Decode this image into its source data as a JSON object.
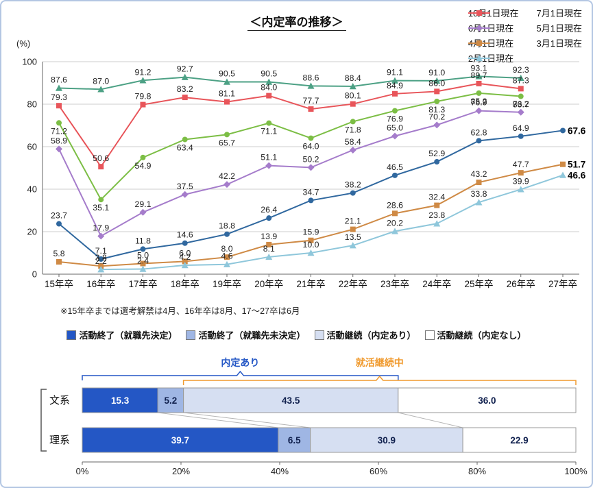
{
  "page": {
    "border_color": "#b3c6e3",
    "background": "#ffffff"
  },
  "note": "※15年卒までは選考解禁は4月、16年卒は8月、17～27卒は6月",
  "chart_data": [
    {
      "type": "line",
      "title": "＜内定率の推移＞",
      "ylabel": "(%)",
      "ylim": [
        0,
        100
      ],
      "yticks": [
        0,
        20,
        40,
        60,
        80,
        100
      ],
      "grid": true,
      "legend_position": "top-right",
      "categories": [
        "15年卒",
        "16年卒",
        "17年卒",
        "18年卒",
        "19年卒",
        "20年卒",
        "21年卒",
        "22年卒",
        "23年卒",
        "24年卒",
        "25年卒",
        "26年卒",
        "27年卒"
      ],
      "series": [
        {
          "name": "10月1日現在",
          "color": "#4DA185",
          "marker": "triangle",
          "values": [
            87.6,
            87.0,
            91.2,
            92.7,
            90.5,
            90.5,
            88.6,
            88.4,
            91.1,
            91.0,
            93.1,
            92.3,
            null
          ]
        },
        {
          "name": "7月1日現在",
          "color": "#E8555A",
          "marker": "square",
          "values": [
            79.3,
            50.6,
            79.8,
            83.2,
            81.1,
            84.0,
            77.7,
            80.1,
            84.9,
            86.0,
            89.7,
            87.3,
            null
          ]
        },
        {
          "name": "6月1日現在",
          "color": "#7CBE45",
          "marker": "circle",
          "label_below": true,
          "values": [
            71.2,
            35.1,
            54.9,
            63.4,
            65.7,
            71.1,
            64.0,
            71.8,
            76.9,
            81.3,
            85.2,
            83.7,
            null
          ]
        },
        {
          "name": "5月1日現在",
          "color": "#A57CCB",
          "marker": "diamond",
          "values": [
            58.9,
            17.9,
            29.1,
            37.5,
            42.2,
            51.1,
            50.2,
            58.4,
            65.0,
            70.2,
            76.9,
            76.2,
            null
          ]
        },
        {
          "name": "4月1日現在",
          "color": "#30689F",
          "marker": "circle",
          "end_bold": true,
          "values": [
            23.7,
            7.1,
            11.8,
            14.6,
            18.8,
            26.4,
            34.7,
            38.2,
            46.5,
            52.9,
            62.8,
            64.9,
            67.6
          ]
        },
        {
          "name": "3月1日現在",
          "color": "#CF8A45",
          "marker": "square",
          "end_bold": true,
          "values": [
            5.8,
            3.8,
            5.0,
            6.0,
            8.0,
            13.9,
            15.9,
            21.1,
            28.6,
            32.4,
            43.2,
            47.7,
            51.7
          ]
        },
        {
          "name": "2月1日現在",
          "color": "#8FC7DB",
          "marker": "triangle",
          "end_bold": true,
          "values": [
            null,
            2.2,
            2.4,
            4.2,
            4.6,
            8.1,
            10.0,
            13.5,
            20.2,
            23.8,
            33.8,
            39.9,
            46.6
          ]
        }
      ]
    },
    {
      "type": "stacked-bar-horizontal",
      "categories": [
        "文系",
        "理系"
      ],
      "segments": [
        {
          "label": "活動終了（就職先決定）",
          "color": "#2457C5",
          "text_color": "#ffffff"
        },
        {
          "label": "活動終了（就職先未決定）",
          "color": "#9FB6E4",
          "text_color": "#10204e"
        },
        {
          "label": "活動継続（内定あり）",
          "color": "#D6DFF2",
          "text_color": "#10204e"
        },
        {
          "label": "活動継続（内定なし）",
          "color": "#FFFFFF",
          "text_color": "#10204e"
        }
      ],
      "rows": [
        {
          "category": "文系",
          "values": [
            15.3,
            5.2,
            43.5,
            36.0
          ]
        },
        {
          "category": "理系",
          "values": [
            39.7,
            6.5,
            30.9,
            22.9
          ]
        }
      ],
      "xticks": [
        "0%",
        "20%",
        "40%",
        "60%",
        "80%",
        "100%"
      ],
      "xlim": [
        0,
        100
      ],
      "annotations": [
        {
          "label": "内定あり",
          "color": "#2457C5",
          "from": 0,
          "to": 64.0
        },
        {
          "label": "就活継続中",
          "color": "#F09A2E",
          "from": 20.5,
          "to": 100
        }
      ]
    }
  ]
}
